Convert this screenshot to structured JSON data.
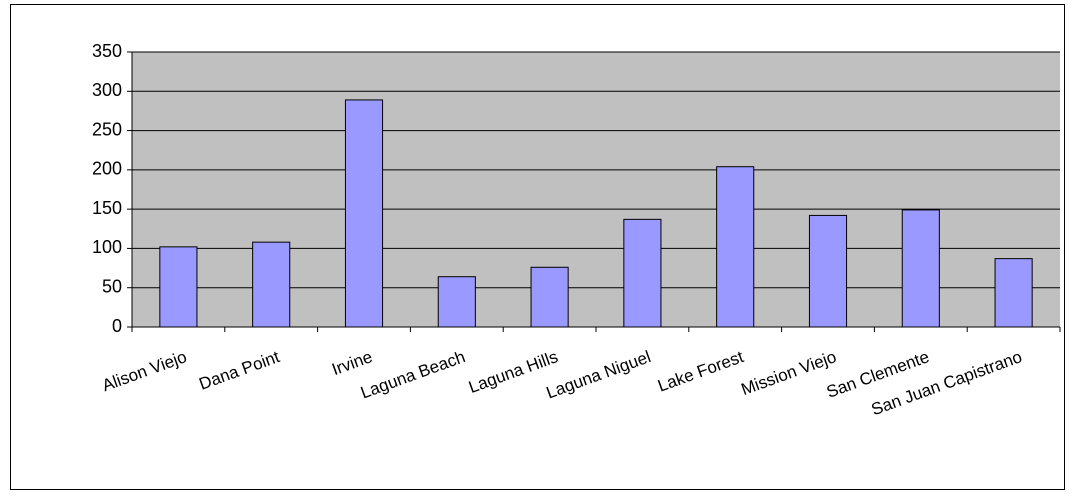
{
  "chart_data": {
    "type": "bar",
    "categories": [
      "Alison Viejo",
      "Dana Point",
      "Irvine",
      "Laguna Beach",
      "Laguna Hills",
      "Laguna Niguel",
      "Lake Forest",
      "Mission Viejo",
      "San Clemente",
      "San Juan Capistrano"
    ],
    "values": [
      102,
      108,
      289,
      64,
      76,
      137,
      204,
      142,
      149,
      87
    ],
    "color": "#9999ff",
    "ylim": [
      0,
      350
    ],
    "yticks": [
      0,
      50,
      100,
      150,
      200,
      250,
      300,
      350
    ],
    "grid": true
  }
}
